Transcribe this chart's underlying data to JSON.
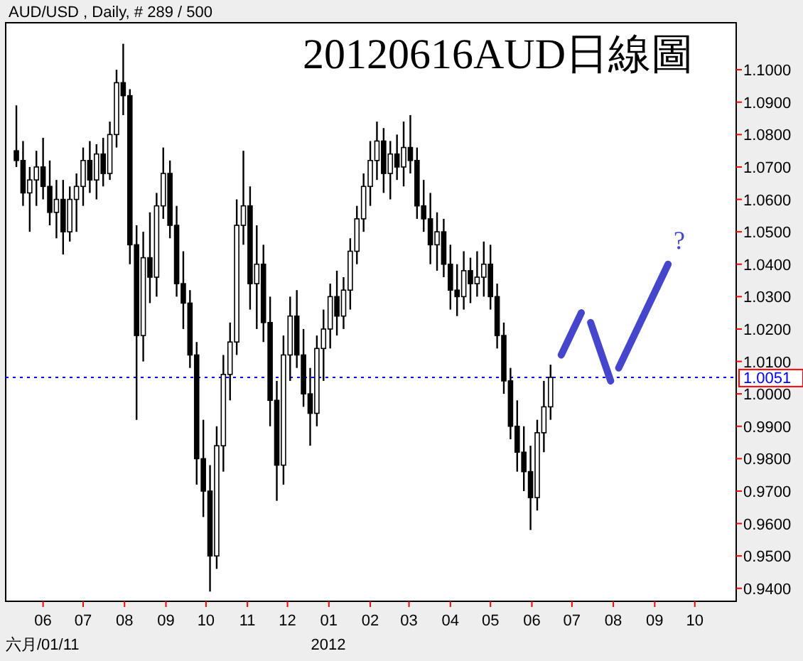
{
  "chart_data": {
    "type": "candlestick",
    "title": "20120616AUD日線圖",
    "color": "#000000",
    "x": [
      "2011-05-12",
      "2011-05-17",
      "2011-05-22",
      "2011-05-27",
      "2011-06-01",
      "2011-06-06",
      "2011-06-11",
      "2011-06-16",
      "2011-06-21",
      "2011-06-26",
      "2011-07-01",
      "2011-07-06",
      "2011-07-11",
      "2011-07-16",
      "2011-07-21",
      "2011-07-26",
      "2011-07-31",
      "2011-08-05",
      "2011-08-10",
      "2011-08-15",
      "2011-08-20",
      "2011-08-25",
      "2011-08-30",
      "2011-09-04",
      "2011-09-09",
      "2011-09-14",
      "2011-09-19",
      "2011-09-24",
      "2011-09-29",
      "2011-10-04",
      "2011-10-09",
      "2011-10-14",
      "2011-10-19",
      "2011-10-24",
      "2011-10-29",
      "2011-11-03",
      "2011-11-08",
      "2011-11-13",
      "2011-11-18",
      "2011-11-23",
      "2011-11-28",
      "2011-12-03",
      "2011-12-08",
      "2011-12-13",
      "2011-12-18",
      "2011-12-23",
      "2011-12-28",
      "2012-01-02",
      "2012-01-07",
      "2012-01-12",
      "2012-01-17",
      "2012-01-22",
      "2012-01-27",
      "2012-02-01",
      "2012-02-06",
      "2012-02-11",
      "2012-02-16",
      "2012-02-21",
      "2012-02-26",
      "2012-03-02",
      "2012-03-07",
      "2012-03-12",
      "2012-03-17",
      "2012-03-22",
      "2012-03-27",
      "2012-04-01",
      "2012-04-06",
      "2012-04-11",
      "2012-04-16",
      "2012-04-21",
      "2012-04-26",
      "2012-05-01",
      "2012-05-06",
      "2012-05-11",
      "2012-05-16",
      "2012-05-21",
      "2012-05-26",
      "2012-05-31",
      "2012-06-05",
      "2012-06-10",
      "2012-06-15"
    ],
    "ohlc": [
      [
        1.075,
        1.089,
        1.07,
        1.072
      ],
      [
        1.072,
        1.078,
        1.058,
        1.062
      ],
      [
        1.062,
        1.07,
        1.05,
        1.066
      ],
      [
        1.066,
        1.075,
        1.058,
        1.07
      ],
      [
        1.07,
        1.079,
        1.06,
        1.064
      ],
      [
        1.064,
        1.072,
        1.052,
        1.056
      ],
      [
        1.056,
        1.066,
        1.048,
        1.06
      ],
      [
        1.06,
        1.066,
        1.043,
        1.05
      ],
      [
        1.05,
        1.064,
        1.047,
        1.06
      ],
      [
        1.06,
        1.068,
        1.05,
        1.064
      ],
      [
        1.064,
        1.076,
        1.058,
        1.072
      ],
      [
        1.072,
        1.078,
        1.062,
        1.066
      ],
      [
        1.066,
        1.077,
        1.06,
        1.074
      ],
      [
        1.074,
        1.079,
        1.064,
        1.068
      ],
      [
        1.068,
        1.084,
        1.066,
        1.08
      ],
      [
        1.08,
        1.1,
        1.076,
        1.096
      ],
      [
        1.096,
        1.108,
        1.086,
        1.092
      ],
      [
        1.092,
        1.094,
        1.04,
        1.046
      ],
      [
        1.046,
        1.052,
        0.992,
        1.018
      ],
      [
        1.018,
        1.05,
        1.01,
        1.042
      ],
      [
        1.042,
        1.056,
        1.028,
        1.036
      ],
      [
        1.036,
        1.062,
        1.03,
        1.058
      ],
      [
        1.058,
        1.076,
        1.054,
        1.068
      ],
      [
        1.068,
        1.072,
        1.048,
        1.052
      ],
      [
        1.052,
        1.058,
        1.03,
        1.034
      ],
      [
        1.034,
        1.044,
        1.02,
        1.028
      ],
      [
        1.028,
        1.032,
        1.008,
        1.012
      ],
      [
        1.012,
        1.016,
        0.972,
        0.98
      ],
      [
        0.98,
        0.992,
        0.962,
        0.97
      ],
      [
        0.97,
        0.978,
        0.939,
        0.95
      ],
      [
        0.95,
        0.99,
        0.946,
        0.984
      ],
      [
        0.984,
        1.012,
        0.976,
        1.006
      ],
      [
        1.006,
        1.022,
        0.998,
        1.016
      ],
      [
        1.016,
        1.06,
        1.012,
        1.052
      ],
      [
        1.052,
        1.075,
        1.046,
        1.058
      ],
      [
        1.058,
        1.064,
        1.026,
        1.034
      ],
      [
        1.034,
        1.052,
        1.02,
        1.04
      ],
      [
        1.04,
        1.046,
        1.016,
        1.022
      ],
      [
        1.022,
        1.03,
        0.99,
        0.998
      ],
      [
        0.998,
        1.004,
        0.967,
        0.978
      ],
      [
        0.978,
        1.018,
        0.972,
        1.012
      ],
      [
        1.012,
        1.03,
        1.004,
        1.024
      ],
      [
        1.024,
        1.032,
        1.008,
        1.012
      ],
      [
        1.012,
        1.02,
        0.996,
        1.0
      ],
      [
        1.0,
        1.008,
        0.984,
        0.994
      ],
      [
        0.994,
        1.018,
        0.99,
        1.014
      ],
      [
        1.014,
        1.026,
        1.004,
        1.02
      ],
      [
        1.02,
        1.034,
        1.014,
        1.03
      ],
      [
        1.03,
        1.038,
        1.018,
        1.024
      ],
      [
        1.024,
        1.036,
        1.02,
        1.032
      ],
      [
        1.032,
        1.048,
        1.026,
        1.044
      ],
      [
        1.044,
        1.058,
        1.04,
        1.054
      ],
      [
        1.054,
        1.068,
        1.05,
        1.064
      ],
      [
        1.064,
        1.078,
        1.058,
        1.072
      ],
      [
        1.072,
        1.084,
        1.066,
        1.078
      ],
      [
        1.078,
        1.082,
        1.062,
        1.068
      ],
      [
        1.068,
        1.078,
        1.06,
        1.074
      ],
      [
        1.074,
        1.08,
        1.066,
        1.07
      ],
      [
        1.07,
        1.084,
        1.064,
        1.076
      ],
      [
        1.076,
        1.086,
        1.068,
        1.072
      ],
      [
        1.072,
        1.076,
        1.054,
        1.058
      ],
      [
        1.058,
        1.066,
        1.05,
        1.054
      ],
      [
        1.054,
        1.062,
        1.04,
        1.046
      ],
      [
        1.046,
        1.056,
        1.038,
        1.05
      ],
      [
        1.05,
        1.054,
        1.036,
        1.04
      ],
      [
        1.04,
        1.046,
        1.026,
        1.032
      ],
      [
        1.032,
        1.04,
        1.024,
        1.03
      ],
      [
        1.03,
        1.044,
        1.026,
        1.038
      ],
      [
        1.038,
        1.042,
        1.028,
        1.034
      ],
      [
        1.034,
        1.044,
        1.03,
        1.036
      ],
      [
        1.036,
        1.047,
        1.03,
        1.04
      ],
      [
        1.04,
        1.046,
        1.026,
        1.03
      ],
      [
        1.03,
        1.034,
        1.014,
        1.018
      ],
      [
        1.018,
        1.022,
        1.0,
        1.004
      ],
      [
        1.004,
        1.008,
        0.986,
        0.99
      ],
      [
        0.99,
        0.998,
        0.976,
        0.982
      ],
      [
        0.982,
        0.99,
        0.97,
        0.976
      ],
      [
        0.976,
        0.984,
        0.958,
        0.968
      ],
      [
        0.968,
        0.992,
        0.964,
        0.988
      ],
      [
        0.988,
        1.004,
        0.982,
        0.996
      ],
      [
        0.996,
        1.009,
        0.992,
        1.0051
      ]
    ],
    "series": [
      {
        "type": "line",
        "color": "#4646cc",
        "x": [
          "2012-06-23",
          "2012-07-08",
          "2012-07-11",
          "2012-07-15",
          "2012-07-30",
          "2012-08-02",
          "2012-08-05",
          "2012-09-11"
        ],
        "values": [
          1.012,
          1.025,
          null,
          1.022,
          1.004,
          null,
          1.008,
          1.04
        ]
      }
    ],
    "xlim": [
      "2011-05-04",
      "2012-11-01"
    ],
    "xticks": [
      {
        "value": "2011-06-01",
        "label": "06"
      },
      {
        "value": "2011-07-01",
        "label": "07"
      },
      {
        "value": "2011-08-01",
        "label": "08"
      },
      {
        "value": "2011-09-01",
        "label": "09"
      },
      {
        "value": "2011-10-01",
        "label": "10"
      },
      {
        "value": "2011-11-01",
        "label": "11"
      },
      {
        "value": "2011-12-01",
        "label": "12"
      },
      {
        "value": "2012-01-01",
        "label": "01"
      },
      {
        "value": "2012-02-01",
        "label": "02"
      },
      {
        "value": "2012-03-01",
        "label": "03"
      },
      {
        "value": "2012-04-01",
        "label": "04"
      },
      {
        "value": "2012-05-01",
        "label": "05"
      },
      {
        "value": "2012-06-01",
        "label": "06"
      },
      {
        "value": "2012-07-01",
        "label": "07"
      },
      {
        "value": "2012-08-01",
        "label": "08"
      },
      {
        "value": "2012-09-01",
        "label": "09"
      },
      {
        "value": "2012-10-01",
        "label": "10"
      }
    ],
    "ylim": [
      0.936,
      1.1145
    ],
    "yticks": [
      {
        "value": 0.94,
        "label": "0.9400"
      },
      {
        "value": 0.95,
        "label": "0.9500"
      },
      {
        "value": 0.96,
        "label": "0.9600"
      },
      {
        "value": 0.97,
        "label": "0.9700"
      },
      {
        "value": 0.98,
        "label": "0.9800"
      },
      {
        "value": 0.99,
        "label": "0.9900"
      },
      {
        "value": 1.0,
        "label": "1.0000"
      },
      {
        "value": 1.01,
        "label": "1.0100"
      },
      {
        "value": 1.02,
        "label": "1.0200"
      },
      {
        "value": 1.03,
        "label": "1.0300"
      },
      {
        "value": 1.04,
        "label": "1.0400"
      },
      {
        "value": 1.05,
        "label": "1.0500"
      },
      {
        "value": 1.06,
        "label": "1.0600"
      },
      {
        "value": 1.07,
        "label": "1.0700"
      },
      {
        "value": 1.08,
        "label": "1.0800"
      },
      {
        "value": 1.09,
        "label": "1.0900"
      },
      {
        "value": 1.1,
        "label": "1.1000"
      }
    ],
    "ref_lines": [
      {
        "axis": "y",
        "value": 1.0051,
        "label": "1.0051",
        "color": "#0000ff",
        "line_style": "dotted"
      }
    ],
    "annotations": [
      "AUD/USD , Daily, # 289 / 500",
      "六月/01/11",
      "2012",
      "?"
    ]
  }
}
